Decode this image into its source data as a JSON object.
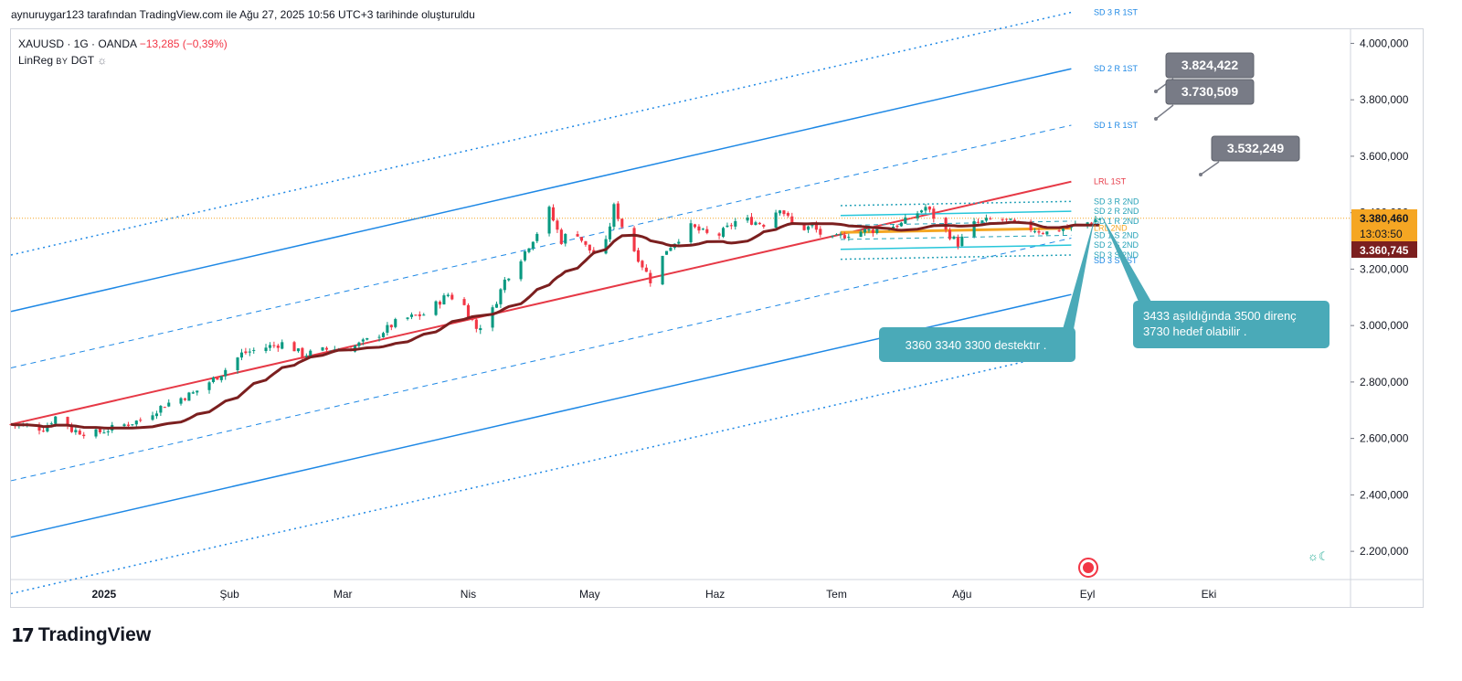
{
  "header": {
    "text": "aynuruygar123 tarafından TradingView.com ile Ağu 27, 2025 10:56 UTC+3 tarihinde oluşturuldu"
  },
  "legend": {
    "symbol": "XAUUSD · 1G · OANDA",
    "change": "−13,285 (−0,39%)",
    "indicator": "LinReg",
    "indicator_by": "BY",
    "indicator_author": "DGT",
    "indicator_icon": "sun-moon-icon"
  },
  "colors": {
    "up": "#089981",
    "down": "#f23645",
    "regression": "#e63946",
    "channel_blue": "#1e88e5",
    "ma": "#7b1f1f",
    "axis_text": "#131722",
    "label_gray": "#787b86",
    "callout": "#4aaab8"
  },
  "chart_data": {
    "type": "candlestick",
    "title": "",
    "y_axis": {
      "min": 2100000,
      "max": 4050000,
      "ticks": [
        "4.000,000",
        "3.800,000",
        "3.600,000",
        "3.400,000",
        "3.200,000",
        "3.000,000",
        "2.800,000",
        "2.600,000",
        "2.400,000",
        "2.200,000"
      ],
      "tick_values": [
        4000000,
        3800000,
        3600000,
        3400000,
        3200000,
        3000000,
        2800000,
        2600000,
        2400000,
        2200000
      ]
    },
    "x_axis": {
      "labels": [
        "2025",
        "Şub",
        "Mar",
        "Nis",
        "May",
        "Haz",
        "Tem",
        "Ağu",
        "Eyl",
        "Eki"
      ],
      "label_days": [
        23,
        54,
        82,
        113,
        143,
        174,
        204,
        235,
        266,
        296
      ],
      "start_day": 0,
      "end_day": 331
    },
    "last_day": 269,
    "current_price_label": "3.380,460",
    "countdown_label": "13:03:50",
    "prev_price_label": "3.360,745",
    "current_price": 3380460,
    "prev_price": 3360745,
    "series_key_points": [
      {
        "day": 0,
        "close": 2650000
      },
      {
        "day": 8,
        "close": 2635000
      },
      {
        "day": 12,
        "close": 2690000
      },
      {
        "day": 15,
        "close": 2630000
      },
      {
        "day": 20,
        "close": 2615000
      },
      {
        "day": 26,
        "close": 2640000
      },
      {
        "day": 32,
        "close": 2665000
      },
      {
        "day": 38,
        "close": 2720000
      },
      {
        "day": 45,
        "close": 2760000
      },
      {
        "day": 52,
        "close": 2830000
      },
      {
        "day": 57,
        "close": 2900000
      },
      {
        "day": 62,
        "close": 2920000
      },
      {
        "day": 68,
        "close": 2940000
      },
      {
        "day": 72,
        "close": 2895000
      },
      {
        "day": 78,
        "close": 2915000
      },
      {
        "day": 84,
        "close": 2920000
      },
      {
        "day": 90,
        "close": 2960000
      },
      {
        "day": 96,
        "close": 3020000
      },
      {
        "day": 102,
        "close": 3040000
      },
      {
        "day": 108,
        "close": 3110000
      },
      {
        "day": 112,
        "close": 3070000
      },
      {
        "day": 115,
        "close": 2990000
      },
      {
        "day": 118,
        "close": 3020000
      },
      {
        "day": 122,
        "close": 3160000
      },
      {
        "day": 126,
        "close": 3240000
      },
      {
        "day": 130,
        "close": 3330000
      },
      {
        "day": 133,
        "close": 3410000
      },
      {
        "day": 136,
        "close": 3300000
      },
      {
        "day": 139,
        "close": 3350000
      },
      {
        "day": 142,
        "close": 3280000
      },
      {
        "day": 146,
        "close": 3230000
      },
      {
        "day": 149,
        "close": 3420000
      },
      {
        "day": 152,
        "close": 3320000
      },
      {
        "day": 155,
        "close": 3240000
      },
      {
        "day": 158,
        "close": 3160000
      },
      {
        "day": 162,
        "close": 3270000
      },
      {
        "day": 168,
        "close": 3350000
      },
      {
        "day": 174,
        "close": 3310000
      },
      {
        "day": 180,
        "close": 3380000
      },
      {
        "day": 186,
        "close": 3360000
      },
      {
        "day": 190,
        "close": 3420000
      },
      {
        "day": 194,
        "close": 3340000
      },
      {
        "day": 198,
        "close": 3350000
      },
      {
        "day": 202,
        "close": 3300000
      },
      {
        "day": 208,
        "close": 3330000
      },
      {
        "day": 214,
        "close": 3340000
      },
      {
        "day": 220,
        "close": 3360000
      },
      {
        "day": 226,
        "close": 3420000
      },
      {
        "day": 230,
        "close": 3350000
      },
      {
        "day": 234,
        "close": 3290000
      },
      {
        "day": 238,
        "close": 3360000
      },
      {
        "day": 244,
        "close": 3380000
      },
      {
        "day": 250,
        "close": 3350000
      },
      {
        "day": 256,
        "close": 3330000
      },
      {
        "day": 262,
        "close": 3350000
      },
      {
        "day": 266,
        "close": 3365000
      },
      {
        "day": 269,
        "close": 3380000
      }
    ],
    "channel_1st": {
      "start_day": 0,
      "end_day": 262,
      "lrl": [
        2650000,
        3510000
      ],
      "sd1": 200000,
      "sd2": 400000,
      "sd3": 600000
    },
    "channel_2nd": {
      "start_day": 205,
      "end_day": 262,
      "lrl": [
        3330000,
        3345000
      ],
      "sd1": 25000,
      "sd2": 60000,
      "sd3": 95000
    },
    "labels_1st": [
      "SD 3 R 1ST",
      "SD 2 R 1ST",
      "SD 1 R 1ST",
      "LRL 1ST",
      "SD 3 S 1ST"
    ],
    "labels_2nd": [
      "SD 3 R 2ND",
      "SD 2 R 2ND",
      "SD 1 R 2ND",
      "LRL 2ND",
      "SD 1 S 2ND",
      "SD 2 S 2ND",
      "SD 3 S 2ND"
    ],
    "price_tags": [
      {
        "label": "3.824,422",
        "value": 3824422
      },
      {
        "label": "3.730,509",
        "value": 3730509
      },
      {
        "label": "3.532,249",
        "value": 3532249
      }
    ]
  },
  "callouts": {
    "support": "3360  3340  3300  destektır .",
    "resistance_line1": "3433 aşıldığında 3500 direnç",
    "resistance_line2": "3730 hedef olabilir ."
  },
  "footer": {
    "brand": "TradingView",
    "logo_mark": "17"
  }
}
